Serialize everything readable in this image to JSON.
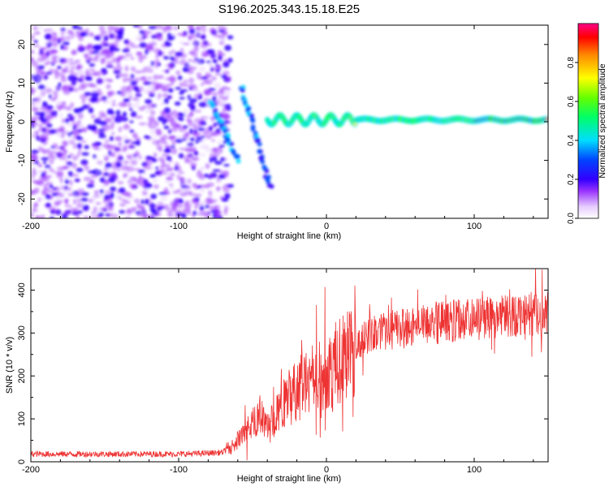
{
  "title": "S196.2025.343.15.18.E25",
  "colors": {
    "line": "#ee3333",
    "axis": "#000000",
    "background": "#ffffff"
  },
  "chart_data": [
    {
      "type": "heatmap",
      "title": "S196.2025.343.15.18.E25",
      "xlabel": "Height of straight line (km)",
      "ylabel": "Frequency (Hz)",
      "xlim": [
        -200,
        150
      ],
      "ylim": [
        -25,
        25
      ],
      "xticks": [
        -200,
        -100,
        0,
        100
      ],
      "yticks": [
        -20,
        -10,
        0,
        10,
        20
      ],
      "description_values": {
        "noise_region_x": [
          -200,
          -65
        ],
        "signal_frequency_hz": 0.5,
        "signal_onset_x": -40,
        "peak_amplitude_x_range": [
          100,
          150
        ]
      },
      "colorbar": {
        "label": "Normalized spectral amplitude",
        "ticks": [
          0.0,
          0.2,
          0.4,
          0.6,
          0.8
        ],
        "range": [
          0.0,
          1.0
        ],
        "stops": [
          "#ffffff",
          "#e6ccff",
          "#7a00ff",
          "#0000ff",
          "#00ffff",
          "#00ff00",
          "#ffff00",
          "#ff8000",
          "#ff0000",
          "#ff0080"
        ]
      }
    },
    {
      "type": "line",
      "xlabel": "Height of straight line (km)",
      "ylabel": "SNR (10 * v/v)",
      "xlim": [
        -200,
        150
      ],
      "ylim": [
        0,
        450
      ],
      "xticks": [
        -200,
        -100,
        0,
        100
      ],
      "yticks": [
        0,
        100,
        200,
        300,
        400
      ],
      "series": [
        {
          "name": "SNR",
          "x": [
            -200,
            -180,
            -160,
            -140,
            -120,
            -100,
            -80,
            -70,
            -65,
            -60,
            -55,
            -50,
            -45,
            -40,
            -35,
            -30,
            -25,
            -20,
            -15,
            -10,
            -5,
            0,
            5,
            10,
            15,
            20,
            25,
            30,
            40,
            50,
            60,
            70,
            80,
            90,
            100,
            110,
            120,
            130,
            140,
            150
          ],
          "values": [
            18,
            18,
            18,
            18,
            18,
            18,
            20,
            22,
            35,
            50,
            70,
            90,
            110,
            80,
            100,
            130,
            150,
            170,
            180,
            200,
            210,
            220,
            220,
            240,
            260,
            280,
            290,
            300,
            305,
            310,
            315,
            320,
            325,
            330,
            330,
            335,
            340,
            345,
            345,
            345
          ]
        }
      ]
    }
  ]
}
